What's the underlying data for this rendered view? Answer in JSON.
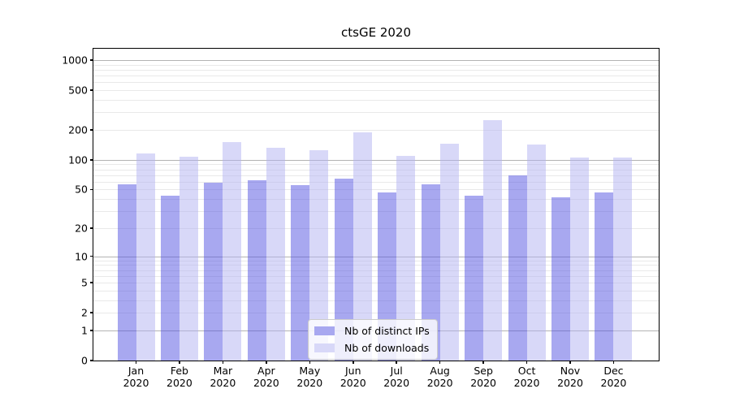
{
  "title": "ctsGE 2020",
  "chart_data": {
    "type": "bar",
    "title": "ctsGE 2020",
    "categories": [
      "Jan",
      "Feb",
      "Mar",
      "Apr",
      "May",
      "Jun",
      "Jul",
      "Aug",
      "Sep",
      "Oct",
      "Nov",
      "Dec"
    ],
    "category_sub_label": "2020",
    "series": [
      {
        "name": "Nb of distinct IPs",
        "color": "#a8a8f0",
        "values": [
          56,
          43,
          59,
          62,
          55,
          64,
          47,
          56,
          43,
          70,
          42,
          47
        ]
      },
      {
        "name": "Nb of downloads",
        "color": "#d8d8f8",
        "values": [
          116,
          107,
          150,
          133,
          125,
          188,
          110,
          145,
          250,
          143,
          106,
          105
        ]
      }
    ],
    "y_ticks": [
      0,
      1,
      2,
      5,
      10,
      20,
      50,
      100,
      200,
      500,
      1000
    ],
    "y_scale": "log1p",
    "ylim": [
      0,
      1300
    ],
    "xlabel": "",
    "ylabel": "",
    "grid": "horizontal",
    "legend_position": "lower-center",
    "colors": {
      "major_grid": "#b3b3b3",
      "minor_grid": "#e9e9e9",
      "axis": "#000000",
      "background": "#ffffff"
    }
  }
}
